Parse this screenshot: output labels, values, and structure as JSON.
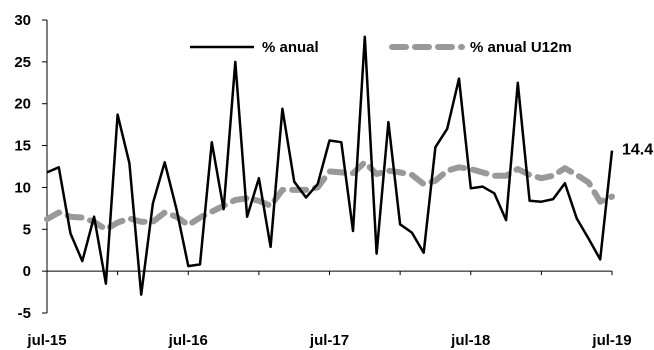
{
  "chart_data": {
    "type": "line",
    "ylim": [
      -5,
      30
    ],
    "yticks": [
      -5,
      0,
      5,
      10,
      15,
      20,
      25,
      30
    ],
    "xlabels": [
      {
        "label": "jul-15",
        "index": 0
      },
      {
        "label": "jul-16",
        "index": 12
      },
      {
        "label": "jul-17",
        "index": 24
      },
      {
        "label": "jul-18",
        "index": 36
      },
      {
        "label": "jul-19",
        "index": 48
      }
    ],
    "grid": false,
    "legend_position": "top",
    "series": [
      {
        "name": "% anual",
        "color": "#000000",
        "style": "solid",
        "values": [
          11.8,
          12.4,
          4.5,
          1.2,
          6.5,
          -1.5,
          18.7,
          12.9,
          -2.8,
          8.1,
          13.0,
          7.4,
          0.6,
          0.8,
          15.4,
          7.4,
          25.0,
          6.5,
          11.1,
          2.9,
          19.4,
          10.7,
          8.8,
          10.4,
          15.6,
          15.4,
          4.8,
          28.0,
          2.1,
          17.8,
          5.6,
          4.6,
          2.2,
          14.8,
          17.0,
          23.0,
          9.9,
          10.1,
          9.3,
          6.1,
          22.5,
          8.4,
          8.3,
          8.6,
          10.5,
          6.3,
          3.9,
          1.4,
          14.4
        ]
      },
      {
        "name": "% anual U12m",
        "color": "#999999",
        "style": "dashed",
        "values": [
          6.2,
          7.0,
          6.5,
          6.4,
          5.9,
          5.0,
          5.8,
          6.3,
          5.9,
          5.9,
          7.0,
          6.5,
          5.5,
          6.4,
          7.1,
          7.8,
          8.5,
          8.7,
          8.4,
          7.8,
          9.7,
          9.7,
          9.7,
          10.0,
          11.9,
          11.8,
          11.7,
          13.0,
          11.6,
          12.0,
          11.8,
          11.5,
          10.4,
          10.8,
          12.0,
          12.4,
          12.2,
          11.8,
          11.4,
          11.4,
          12.2,
          11.5,
          11.1,
          11.4,
          12.3,
          11.5,
          10.6,
          8.3,
          8.9
        ]
      }
    ],
    "data_labels": [
      {
        "series": 0,
        "index": 48,
        "text": "14.4"
      }
    ]
  }
}
